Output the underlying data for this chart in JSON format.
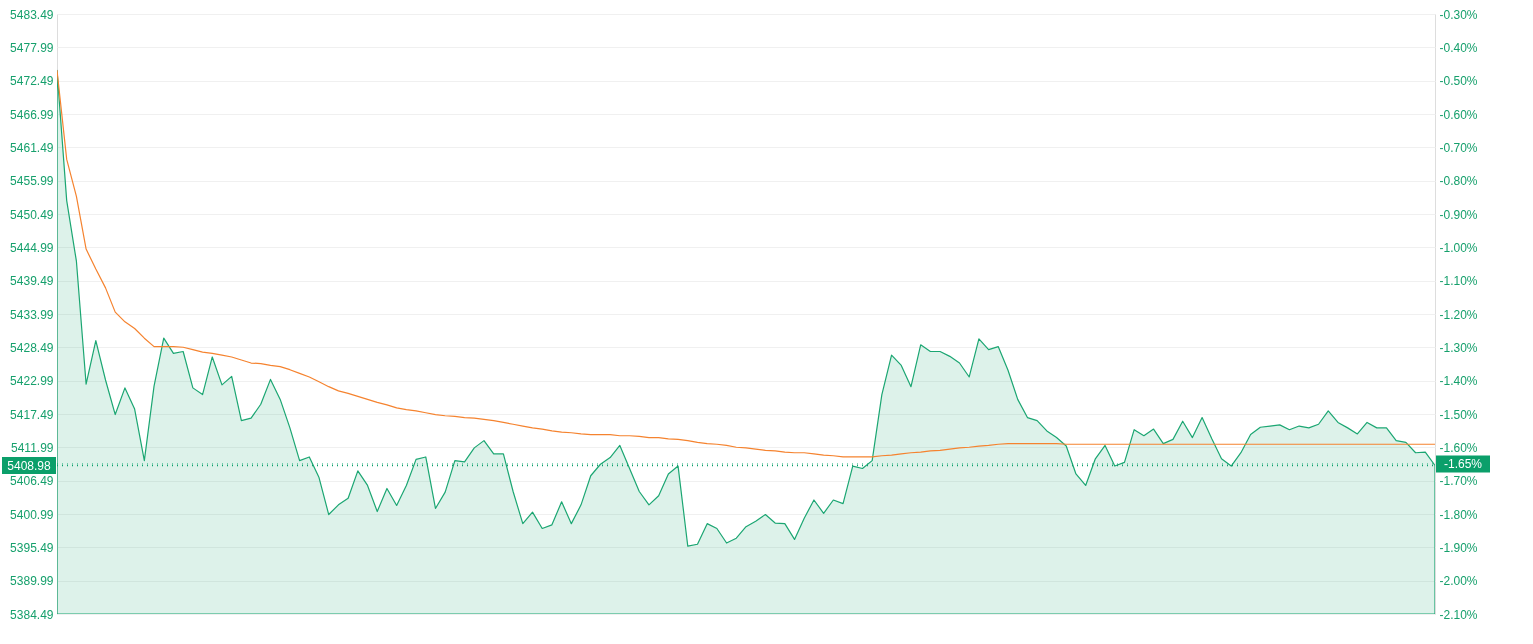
{
  "chart_data": {
    "type": "line",
    "categories": [
      null,
      null,
      null,
      null,
      null,
      null,
      null,
      null,
      null,
      null,
      null,
      null,
      null,
      null,
      null,
      null,
      null,
      null,
      null,
      null,
      null,
      null,
      null,
      null,
      null,
      null,
      null,
      null,
      null,
      null,
      null,
      null,
      null,
      null,
      null,
      null,
      null,
      null,
      null,
      null,
      null,
      null,
      null,
      null,
      null,
      null,
      null,
      null,
      null,
      null,
      null,
      null,
      null,
      null,
      null,
      null,
      null,
      null,
      null,
      null,
      null,
      null,
      null,
      null,
      null,
      null,
      null,
      null,
      null,
      null,
      null,
      null,
      null,
      null,
      null,
      null,
      null,
      null,
      null,
      null,
      null,
      null,
      null,
      null,
      null,
      null,
      null,
      null,
      null,
      null,
      null,
      null,
      null,
      null,
      null,
      null,
      null,
      null,
      null,
      null,
      null,
      null,
      null,
      null,
      null,
      null,
      null,
      null,
      null,
      null,
      null,
      null,
      null,
      null,
      null,
      null,
      null,
      null,
      null,
      null,
      null,
      null,
      null,
      null,
      null,
      null,
      null,
      null,
      null,
      null,
      null,
      null,
      null,
      null,
      null,
      null,
      null,
      null,
      null,
      null,
      null,
      null,
      null
    ],
    "series": [
      {
        "type": "area",
        "color": "#1ba672",
        "values": [
          5474.2,
          5452.7,
          5442.7,
          5422.4,
          5429.6,
          5423.1,
          5417.4,
          5421.8,
          5418.3,
          5409.8,
          5422.1,
          5430.0,
          5427.5,
          5427.8,
          5421.8,
          5420.7,
          5426.9,
          5422.3,
          5423.7,
          5416.4,
          5416.8,
          5419.1,
          5423.2,
          5419.9,
          5415.2,
          5409.8,
          5410.4,
          5407.0,
          5400.9,
          5402.5,
          5403.6,
          5408.1,
          5405.7,
          5401.4,
          5405.2,
          5402.4,
          5405.7,
          5410.0,
          5410.4,
          5401.9,
          5404.6,
          5409.8,
          5409.6,
          5411.9,
          5413.1,
          5410.9,
          5410.9,
          5404.7,
          5399.4,
          5401.3,
          5398.6,
          5399.2,
          5403.0,
          5399.4,
          5402.5,
          5407.3,
          5409.2,
          5410.3,
          5412.3,
          5408.5,
          5404.7,
          5402.5,
          5404.0,
          5407.6,
          5408.9,
          5395.7,
          5396.0,
          5399.4,
          5398.6,
          5396.2,
          5397.0,
          5398.9,
          5399.8,
          5400.9,
          5399.5,
          5399.4,
          5396.8,
          5400.3,
          5403.3,
          5401.1,
          5403.3,
          5402.7,
          5408.9,
          5408.5,
          5409.8,
          5420.7,
          5427.2,
          5425.5,
          5422.0,
          5428.9,
          5427.8,
          5427.8,
          5427.0,
          5425.9,
          5423.6,
          5429.9,
          5428.1,
          5428.6,
          5424.7,
          5419.9,
          5416.9,
          5416.4,
          5414.7,
          5413.6,
          5412.2,
          5407.6,
          5405.7,
          5410.1,
          5412.3,
          5408.9,
          5409.5,
          5414.9,
          5413.9,
          5415.0,
          5412.6,
          5413.3,
          5416.3,
          5413.6,
          5416.9,
          5413.4,
          5410.1,
          5408.9,
          5411.1,
          5414.1,
          5415.3,
          5415.5,
          5415.7,
          5414.9,
          5415.5,
          5415.2,
          5415.8,
          5418.0,
          5416.1,
          5415.2,
          5414.2,
          5416.1,
          5415.2,
          5415.2,
          5413.1,
          5412.8,
          5411.1,
          5411.2,
          5409.0
        ]
      },
      {
        "color": "#f5832f",
        "values": [
          5474.2,
          5459.5,
          5453.4,
          5444.7,
          5441.4,
          5438.3,
          5434.3,
          5432.7,
          5431.6,
          5430.0,
          5428.6,
          5428.6,
          5428.6,
          5428.5,
          5428.1,
          5427.7,
          5427.5,
          5427.2,
          5426.9,
          5426.4,
          5425.9,
          5425.8,
          5425.5,
          5425.3,
          5424.8,
          5424.2,
          5423.6,
          5422.8,
          5422.0,
          5421.3,
          5420.9,
          5420.4,
          5419.9,
          5419.4,
          5419.0,
          5418.5,
          5418.2,
          5418.0,
          5417.7,
          5417.4,
          5417.2,
          5417.1,
          5416.9,
          5416.8,
          5416.6,
          5416.4,
          5416.1,
          5415.8,
          5415.5,
          5415.2,
          5415.0,
          5414.7,
          5414.5,
          5414.4,
          5414.2,
          5414.1,
          5414.1,
          5414.1,
          5413.9,
          5413.9,
          5413.8,
          5413.6,
          5413.6,
          5413.4,
          5413.3,
          5413.1,
          5412.8,
          5412.6,
          5412.5,
          5412.3,
          5412.0,
          5411.9,
          5411.7,
          5411.5,
          5411.4,
          5411.2,
          5411.1,
          5411.1,
          5410.9,
          5410.7,
          5410.6,
          5410.4,
          5410.4,
          5410.4,
          5410.4,
          5410.6,
          5410.7,
          5410.9,
          5411.1,
          5411.2,
          5411.4,
          5411.5,
          5411.7,
          5411.9,
          5412.0,
          5412.2,
          5412.3,
          5412.5,
          5412.6,
          5412.6,
          5412.6,
          5412.6,
          5412.6,
          5412.6,
          5412.5,
          5412.5,
          5412.5,
          5412.5,
          5412.5,
          5412.5,
          5412.5,
          5412.5,
          5412.5,
          5412.5,
          5412.5,
          5412.5,
          5412.5,
          5412.5,
          5412.5,
          5412.5,
          5412.5,
          5412.5,
          5412.5,
          5412.5,
          5412.5,
          5412.5,
          5412.5,
          5412.5,
          5412.5,
          5412.5,
          5412.5,
          5412.5,
          5412.5,
          5412.5,
          5412.5,
          5412.5,
          5412.5,
          5412.5,
          5412.5,
          5412.5,
          5412.5,
          5412.5,
          5412.5
        ]
      }
    ],
    "ylim": [
      5384.49,
      5483.49
    ],
    "yticks": [
      5384.49,
      5389.99,
      5395.49,
      5400.99,
      5406.49,
      5411.99,
      5417.49,
      5422.99,
      5428.49,
      5433.99,
      5439.49,
      5444.99,
      5450.49,
      5455.99,
      5461.49,
      5466.99,
      5472.49,
      5477.99,
      5483.49
    ],
    "y2lim": [
      -2.1,
      -0.3
    ],
    "y2ticks": [
      {
        "value": -2.1,
        "label": "-2.10%"
      },
      {
        "value": -2.0,
        "label": "-2.00%"
      },
      {
        "value": -1.9,
        "label": "-1.90%"
      },
      {
        "value": -1.8,
        "label": "-1.80%"
      },
      {
        "value": -1.7,
        "label": "-1.70%"
      },
      {
        "value": -1.6,
        "label": "-1.60%"
      },
      {
        "value": -1.5,
        "label": "-1.50%"
      },
      {
        "value": -1.4,
        "label": "-1.40%"
      },
      {
        "value": -1.3,
        "label": "-1.30%"
      },
      {
        "value": -1.2,
        "label": "-1.20%"
      },
      {
        "value": -1.1,
        "label": "-1.10%"
      },
      {
        "value": -1.0,
        "label": "-1.00%"
      },
      {
        "value": -0.9,
        "label": "-0.90%"
      },
      {
        "value": -0.8,
        "label": "-0.80%"
      },
      {
        "value": -0.7,
        "label": "-0.70%"
      },
      {
        "value": -0.6,
        "label": "-0.60%"
      },
      {
        "value": -0.5,
        "label": "-0.50%"
      },
      {
        "value": -0.4,
        "label": "-0.40%"
      },
      {
        "value": -0.3,
        "label": "-0.30%"
      }
    ],
    "ref_lines": [
      {
        "axis": "y",
        "value": 5408.98,
        "label": "5408.98",
        "color": "#0b9f6a",
        "line_style": "dotted"
      },
      {
        "axis": "y2",
        "value": -1.65,
        "label": "-1.65%",
        "color": "#0b9f6a",
        "line_style": "dotted"
      }
    ],
    "grid": "y",
    "tick_labels": "y"
  }
}
